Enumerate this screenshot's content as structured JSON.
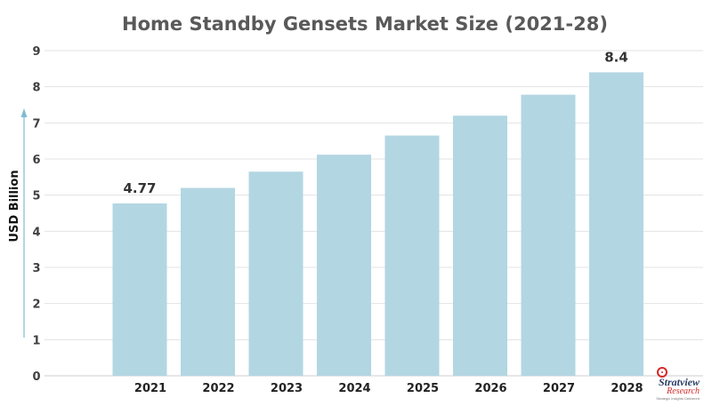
{
  "chart_data": {
    "type": "bar",
    "title": "Home Standby Gensets Market Size (2021-28)",
    "ylabel": "USD Billion",
    "xlabel": "",
    "categories": [
      "2021",
      "2022",
      "2023",
      "2024",
      "2025",
      "2026",
      "2027",
      "2028"
    ],
    "values": [
      4.77,
      5.2,
      5.65,
      6.12,
      6.65,
      7.2,
      7.78,
      8.4
    ],
    "data_labels": [
      "4.77",
      "",
      "",
      "",
      "",
      "",
      "",
      "8.4"
    ],
    "ylim": [
      0,
      9
    ],
    "yticks": [
      0,
      1,
      2,
      3,
      4,
      5,
      6,
      7,
      8,
      9
    ],
    "grid": true,
    "bar_color": "#b3d6e3",
    "axis_arrow_color": "#7fbcd0"
  },
  "logo": {
    "brand": "Stratview",
    "sub": "Research",
    "tagline": "Strategic Insights Delivered"
  }
}
